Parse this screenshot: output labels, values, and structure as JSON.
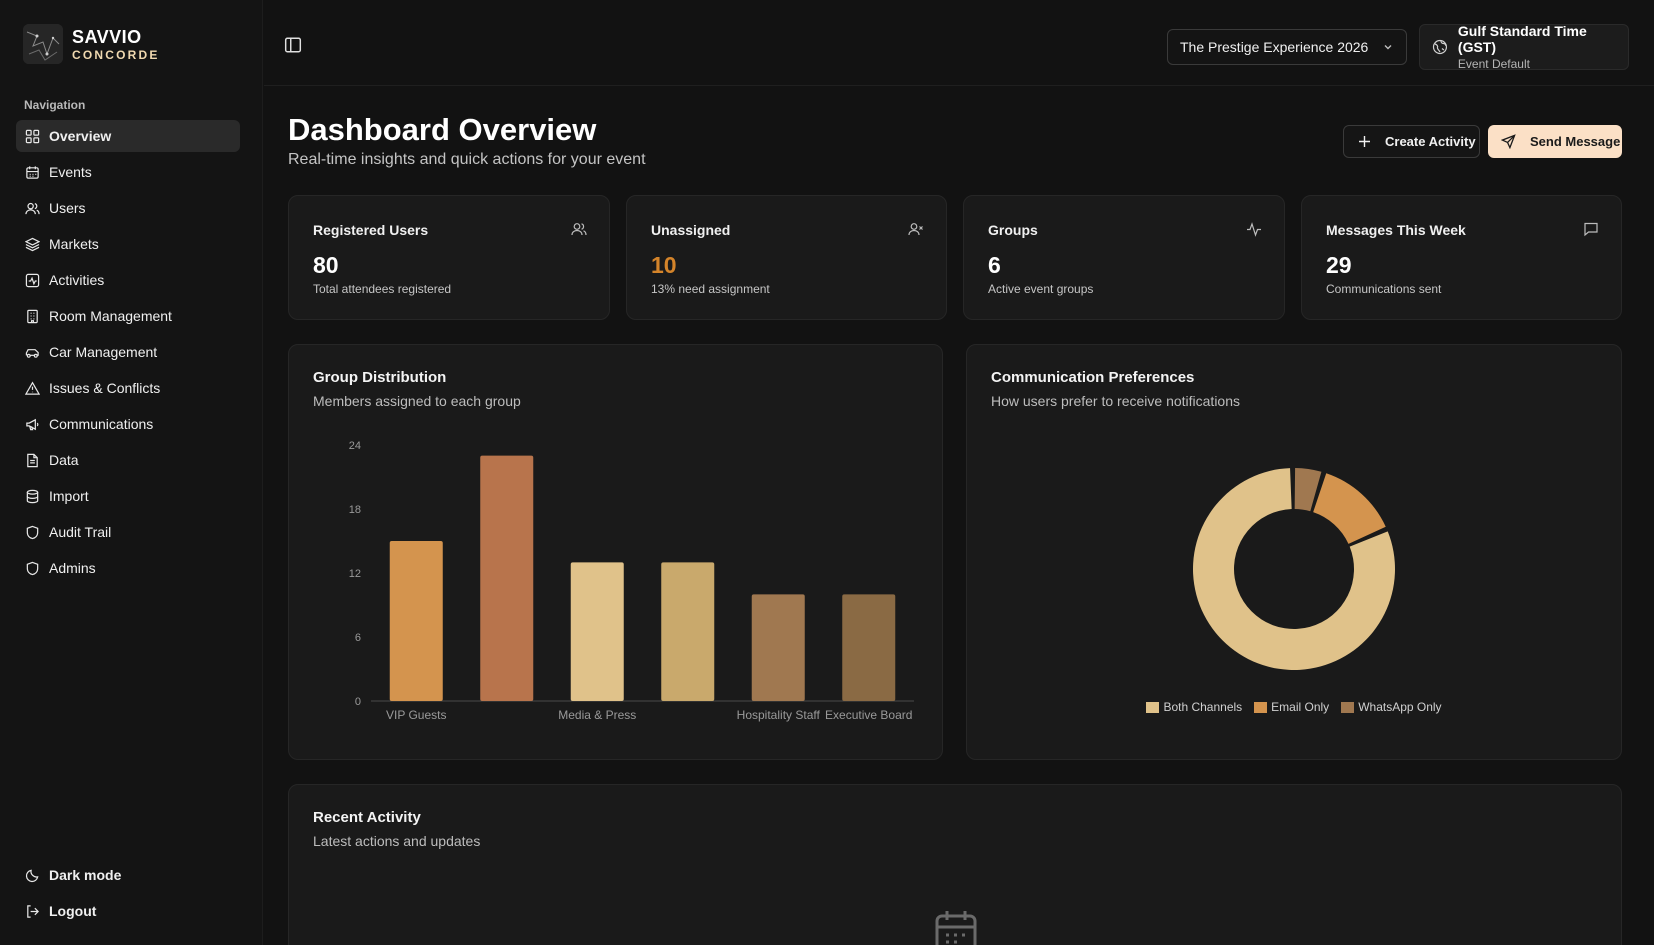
{
  "brand": {
    "name": "SAVVIO",
    "sub": "CONCORDE"
  },
  "sidebar": {
    "heading": "Navigation",
    "items": [
      {
        "label": "Overview",
        "icon": "grid-icon",
        "active": true
      },
      {
        "label": "Events",
        "icon": "calendar-icon"
      },
      {
        "label": "Users",
        "icon": "users-icon"
      },
      {
        "label": "Markets",
        "icon": "layers-icon"
      },
      {
        "label": "Activities",
        "icon": "activity-icon"
      },
      {
        "label": "Room Management",
        "icon": "building-icon"
      },
      {
        "label": "Car Management",
        "icon": "car-icon"
      },
      {
        "label": "Issues & Conflicts",
        "icon": "alert-triangle-icon"
      },
      {
        "label": "Communications",
        "icon": "megaphone-icon"
      },
      {
        "label": "Data",
        "icon": "file-icon"
      },
      {
        "label": "Import",
        "icon": "database-icon"
      },
      {
        "label": "Audit Trail",
        "icon": "shield-icon"
      },
      {
        "label": "Admins",
        "icon": "shield-icon"
      }
    ],
    "dark_mode": "Dark mode",
    "logout": "Logout"
  },
  "topbar": {
    "event": "The Prestige Experience 2026",
    "timezone_title": "Gulf Standard Time (GST)",
    "timezone_sub": "Event Default"
  },
  "page": {
    "title": "Dashboard Overview",
    "subtitle": "Real-time insights and quick actions for your event",
    "create_label": "Create Activity",
    "send_label": "Send Message"
  },
  "stats": [
    {
      "label": "Registered Users",
      "value": "80",
      "desc": "Total attendees registered",
      "icon": "users-icon"
    },
    {
      "label": "Unassigned",
      "value": "10",
      "desc": "13% need assignment",
      "icon": "user-x-icon"
    },
    {
      "label": "Groups",
      "value": "6",
      "desc": "Active event groups",
      "icon": "activity-icon"
    },
    {
      "label": "Messages This Week",
      "value": "29",
      "desc": "Communications sent",
      "icon": "message-square-icon"
    }
  ],
  "group_card": {
    "title": "Group Distribution",
    "subtitle": "Members assigned to each group"
  },
  "comm_card": {
    "title": "Communication Preferences",
    "subtitle": "How users prefer to receive notifications"
  },
  "recent": {
    "title": "Recent Activity",
    "subtitle": "Latest actions and updates"
  },
  "colors": {
    "accent": "#d4842a",
    "bars": [
      "#d4944e",
      "#b8744c",
      "#e0c28a",
      "#c9a96c",
      "#a07850",
      "#8a6a44"
    ],
    "pie": [
      "#e0c28a",
      "#d4944e",
      "#a07850"
    ]
  },
  "chart_data": [
    {
      "type": "bar",
      "title": "Group Distribution",
      "categories": [
        "VIP Guests",
        "",
        "Media & Press",
        "",
        "Hospitality Staff",
        "Executive Board"
      ],
      "values": [
        15,
        23,
        13,
        13,
        10,
        10
      ],
      "yticks": [
        0,
        6,
        12,
        18,
        24
      ],
      "ylim": [
        0,
        24
      ]
    },
    {
      "type": "pie",
      "title": "Communication Preferences",
      "labels": [
        "Both Channels",
        "Email Only",
        "WhatsApp Only"
      ],
      "values": [
        65,
        11,
        4
      ]
    }
  ]
}
